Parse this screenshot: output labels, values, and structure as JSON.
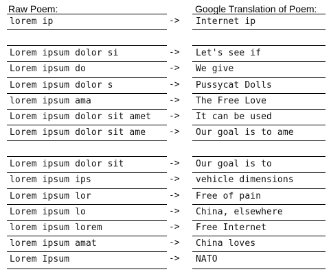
{
  "headers": {
    "raw": "Raw Poem:",
    "translation": "Google Translation of Poem:"
  },
  "rows": [
    {
      "raw": "lorem ip",
      "arrow": "->",
      "translation": "Internet ip"
    },
    {
      "raw": "",
      "arrow": "",
      "translation": ""
    },
    {
      "raw": "Lorem ipsum dolor si",
      "arrow": "->",
      "translation": "Let's see if"
    },
    {
      "raw": "Lorem ipsum do",
      "arrow": "->",
      "translation": "We give"
    },
    {
      "raw": "Lorem ipsum dolor s",
      "arrow": "->",
      "translation": "Pussycat Dolls"
    },
    {
      "raw": "lorem ipsum ama",
      "arrow": "->",
      "translation": "The Free Love"
    },
    {
      "raw": "Lorem ipsum dolor sit amet",
      "arrow": "->",
      "translation": "It can be used"
    },
    {
      "raw": "Lorem ipsum dolor sit ame",
      "arrow": "->",
      "translation": "Our goal is to ame"
    },
    {
      "raw": "",
      "arrow": "",
      "translation": ""
    },
    {
      "raw": "Lorem ipsum dolor sit",
      "arrow": "->",
      "translation": "Our goal is to"
    },
    {
      "raw": "lorem ipsum ips",
      "arrow": "->",
      "translation": "vehicle dimensions"
    },
    {
      "raw": "Lorem ipsum lor",
      "arrow": "->",
      "translation": "Free of pain"
    },
    {
      "raw": "Lorem ipsum lo",
      "arrow": "->",
      "translation": "China, elsewhere"
    },
    {
      "raw": "lorem ipsum lorem",
      "arrow": "->",
      "translation": "Free Internet"
    },
    {
      "raw": "lorem ipsum amat",
      "arrow": "->",
      "translation": "China loves"
    },
    {
      "raw": "Lorem Ipsum",
      "arrow": "->",
      "translation": "NATO"
    }
  ]
}
